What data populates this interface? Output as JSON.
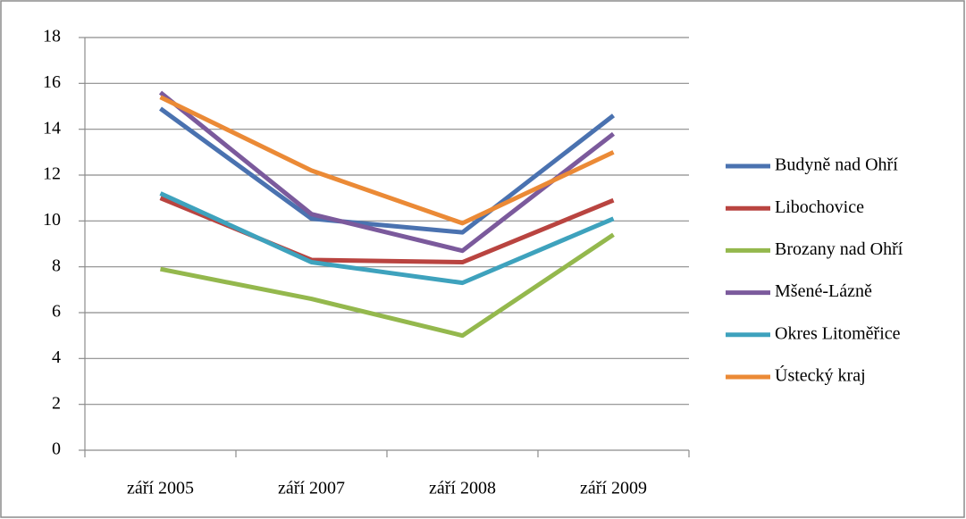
{
  "chart_data": {
    "type": "line",
    "categories": [
      "září 2005",
      "září 2007",
      "září 2008",
      "září 2009"
    ],
    "series": [
      {
        "name": "Budyně nad Ohří",
        "color": "#4a72b0",
        "values": [
          14.9,
          10.1,
          9.5,
          14.6
        ]
      },
      {
        "name": "Libochovice",
        "color": "#b94440",
        "values": [
          11.0,
          8.3,
          8.2,
          10.9
        ]
      },
      {
        "name": "Brozany nad Ohří",
        "color": "#94b84d",
        "values": [
          7.9,
          6.6,
          5.0,
          9.4
        ]
      },
      {
        "name": "Mšené-Lázně",
        "color": "#7b5a9c",
        "values": [
          15.6,
          10.3,
          8.7,
          13.8
        ]
      },
      {
        "name": "Okres Litoměřice",
        "color": "#3ea2bd",
        "values": [
          11.2,
          8.2,
          7.3,
          10.1
        ]
      },
      {
        "name": "Ústecký kraj",
        "color": "#eb8a36",
        "values": [
          15.4,
          12.2,
          9.9,
          13.0
        ]
      }
    ],
    "ylim": [
      0,
      18
    ],
    "yticks": [
      0,
      2,
      4,
      6,
      8,
      10,
      12,
      14,
      16,
      18
    ],
    "grid": true,
    "legend": "right"
  }
}
